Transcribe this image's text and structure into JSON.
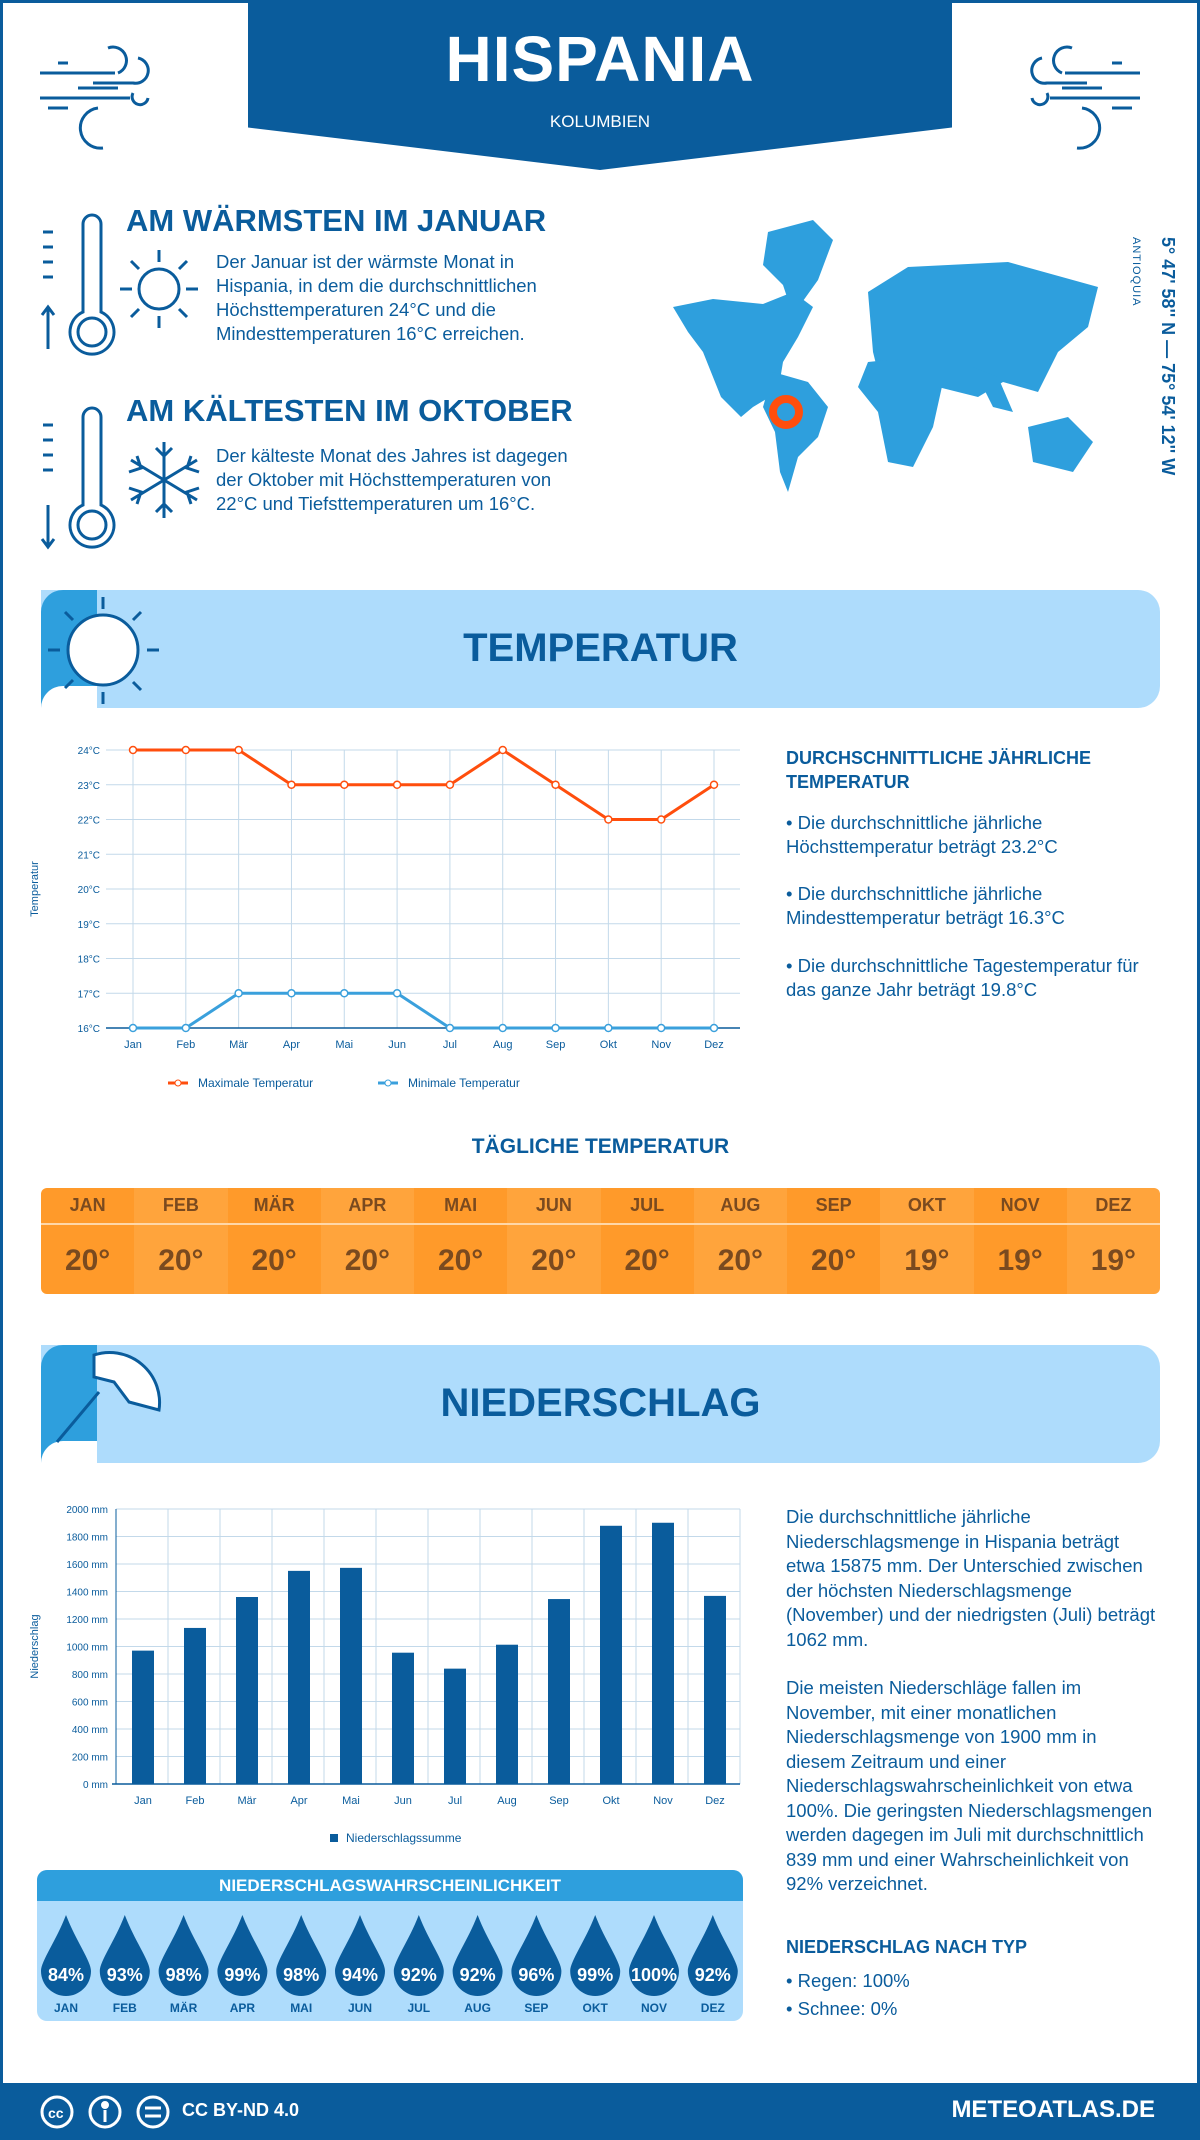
{
  "header": {
    "title": "HISPANIA",
    "country": "KOLUMBIEN"
  },
  "warmest": {
    "heading": "AM WÄRMSTEN IM JANUAR",
    "text": "Der Januar ist der wärmste Monat in Hispania, in dem die durchschnittlichen Höchsttemperaturen 24°C und die Mindesttemperaturen 16°C erreichen."
  },
  "coldest": {
    "heading": "AM KÄLTESTEN IM OKTOBER",
    "text": "Der kälteste Monat des Jahres ist dagegen der Oktober mit Höchsttemperaturen von 22°C und Tiefsttemperaturen um 16°C."
  },
  "location": {
    "coordinates": "5° 47' 58'' N — 75° 54' 12'' W",
    "region": "ANTIOQUIA"
  },
  "temperature_section": {
    "title": "TEMPERATUR",
    "annual_heading": "DURCHSCHNITTLICHE JÄHRLICHE TEMPERATUR",
    "bullets": [
      "• Die durchschnittliche jährliche Höchsttemperatur beträgt 23.2°C",
      "• Die durchschnittliche jährliche Mindesttemperatur beträgt 16.3°C",
      "• Die durchschnittliche Tagestemperatur für das ganze Jahr beträgt 19.8°C"
    ],
    "daily_heading": "TÄGLICHE TEMPERATUR",
    "daily": [
      {
        "m": "JAN",
        "v": "20°"
      },
      {
        "m": "FEB",
        "v": "20°"
      },
      {
        "m": "MÄR",
        "v": "20°"
      },
      {
        "m": "APR",
        "v": "20°"
      },
      {
        "m": "MAI",
        "v": "20°"
      },
      {
        "m": "JUN",
        "v": "20°"
      },
      {
        "m": "JUL",
        "v": "20°"
      },
      {
        "m": "AUG",
        "v": "20°"
      },
      {
        "m": "SEP",
        "v": "20°"
      },
      {
        "m": "OKT",
        "v": "19°"
      },
      {
        "m": "NOV",
        "v": "19°"
      },
      {
        "m": "DEZ",
        "v": "19°"
      }
    ]
  },
  "precip_section": {
    "title": "NIEDERSCHLAG",
    "text1": "Die durchschnittliche jährliche Niederschlagsmenge in Hispania beträgt etwa 15875 mm. Der Unterschied zwischen der höchsten Niederschlagsmenge (November) und der niedrigsten (Juli) beträgt 1062 mm.",
    "text2": "Die meisten Niederschläge fallen im November, mit einer monatlichen Niederschlagsmenge von 1900 mm in diesem Zeitraum und einer Niederschlagswahrscheinlichkeit von etwa 100%. Die geringsten Niederschlagsmengen werden dagegen im Juli mit durchschnittlich 839 mm und einer Wahrscheinlichkeit von 92% verzeichnet.",
    "type_heading": "NIEDERSCHLAG NACH TYP",
    "types": [
      "• Regen: 100%",
      "• Schnee: 0%"
    ],
    "prob_heading": "NIEDERSCHLAGSWAHRSCHEINLICHKEIT",
    "prob": [
      {
        "m": "JAN",
        "v": "84%"
      },
      {
        "m": "FEB",
        "v": "93%"
      },
      {
        "m": "MÄR",
        "v": "98%"
      },
      {
        "m": "APR",
        "v": "99%"
      },
      {
        "m": "MAI",
        "v": "98%"
      },
      {
        "m": "JUN",
        "v": "94%"
      },
      {
        "m": "JUL",
        "v": "92%"
      },
      {
        "m": "AUG",
        "v": "92%"
      },
      {
        "m": "SEP",
        "v": "96%"
      },
      {
        "m": "OKT",
        "v": "99%"
      },
      {
        "m": "NOV",
        "v": "100%"
      },
      {
        "m": "DEZ",
        "v": "92%"
      }
    ]
  },
  "footer": {
    "license": "CC BY-ND 4.0",
    "site": "METEOATLAS.DE"
  },
  "colors": {
    "dark_blue": "#0a5c9c",
    "light_blue": "#aedcfc",
    "mid_blue": "#2e9fdd",
    "max_line": "#ff4e0d",
    "min_line": "#3aa0dc",
    "orange": "#ff9a2a"
  },
  "chart_data": [
    {
      "type": "line",
      "xlabel": "",
      "ylabel": "Temperatur",
      "ylim": [
        16,
        24
      ],
      "categories": [
        "Jan",
        "Feb",
        "Mär",
        "Apr",
        "Mai",
        "Jun",
        "Jul",
        "Aug",
        "Sep",
        "Okt",
        "Nov",
        "Dez"
      ],
      "yticks": [
        "16°C",
        "17°C",
        "18°C",
        "19°C",
        "20°C",
        "21°C",
        "22°C",
        "23°C",
        "24°C"
      ],
      "grid": true,
      "legend": "bottom",
      "series": [
        {
          "name": "Maximale Temperatur",
          "values": [
            24,
            24,
            24,
            23,
            23,
            23,
            23,
            24,
            23,
            22,
            22,
            23
          ]
        },
        {
          "name": "Minimale Temperatur",
          "values": [
            16,
            16,
            17,
            17,
            17,
            17,
            16,
            16,
            16,
            16,
            16,
            16
          ]
        }
      ]
    },
    {
      "type": "bar",
      "xlabel": "",
      "ylabel": "Niederschlag",
      "ylim": [
        0,
        2000
      ],
      "categories": [
        "Jan",
        "Feb",
        "Mär",
        "Apr",
        "Mai",
        "Jun",
        "Jul",
        "Aug",
        "Sep",
        "Okt",
        "Nov",
        "Dez"
      ],
      "yticks": [
        "0 mm",
        "200 mm",
        "400 mm",
        "600 mm",
        "800 mm",
        "1000 mm",
        "1200 mm",
        "1400 mm",
        "1600 mm",
        "1800 mm",
        "2000 mm"
      ],
      "grid": true,
      "legend": "bottom",
      "series": [
        {
          "name": "Niederschlagssumme",
          "values": [
            970,
            1135,
            1360,
            1550,
            1572,
            955,
            839,
            1013,
            1345,
            1878,
            1900,
            1368
          ]
        }
      ]
    }
  ]
}
